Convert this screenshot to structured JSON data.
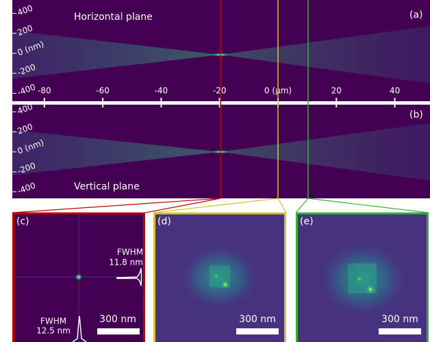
{
  "panel_a": {
    "label": "(a)",
    "title": "Horizontal plane"
  },
  "panel_b": {
    "label": "(b)",
    "title": "Vertical plane"
  },
  "x_axis": {
    "ticks": [
      -80,
      -60,
      -40,
      -20,
      {
        "value": 0,
        "label": "0 (μm)"
      },
      20,
      40
    ]
  },
  "y_axis": {
    "ticks": [
      400,
      200,
      {
        "value": 0,
        "label": "0 (nm)"
      },
      -200,
      -400
    ]
  },
  "panel_c": {
    "label": "(c)",
    "fwhm_h_label": "FWHM",
    "fwhm_h_value": "11.8 nm",
    "fwhm_v_label": "FWHM",
    "fwhm_v_value": "12.5 nm",
    "scale_bar": "300 nm"
  },
  "panel_d": {
    "label": "(d)",
    "scale_bar": "300 nm"
  },
  "panel_e": {
    "label": "(e)",
    "scale_bar": "300 nm"
  }
}
